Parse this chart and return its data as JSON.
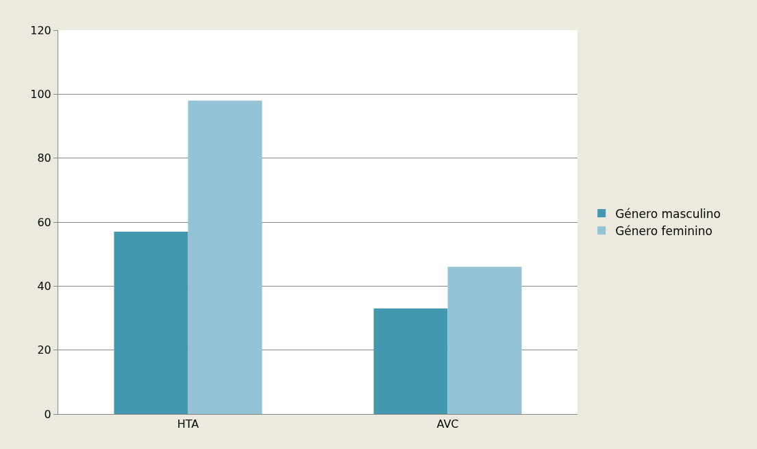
{
  "chart_data": {
    "type": "bar",
    "categories": [
      "HTA",
      "AVC"
    ],
    "series": [
      {
        "name": "Género masculino",
        "color": "#4398b0",
        "values": [
          57,
          33
        ]
      },
      {
        "name": "Género feminino",
        "color": "#93c3d4",
        "values": [
          98,
          46
        ]
      }
    ],
    "ylim": [
      0,
      120
    ],
    "yticks": [
      0,
      20,
      40,
      60,
      80,
      100,
      120
    ],
    "grid": "y",
    "legend": "right"
  }
}
